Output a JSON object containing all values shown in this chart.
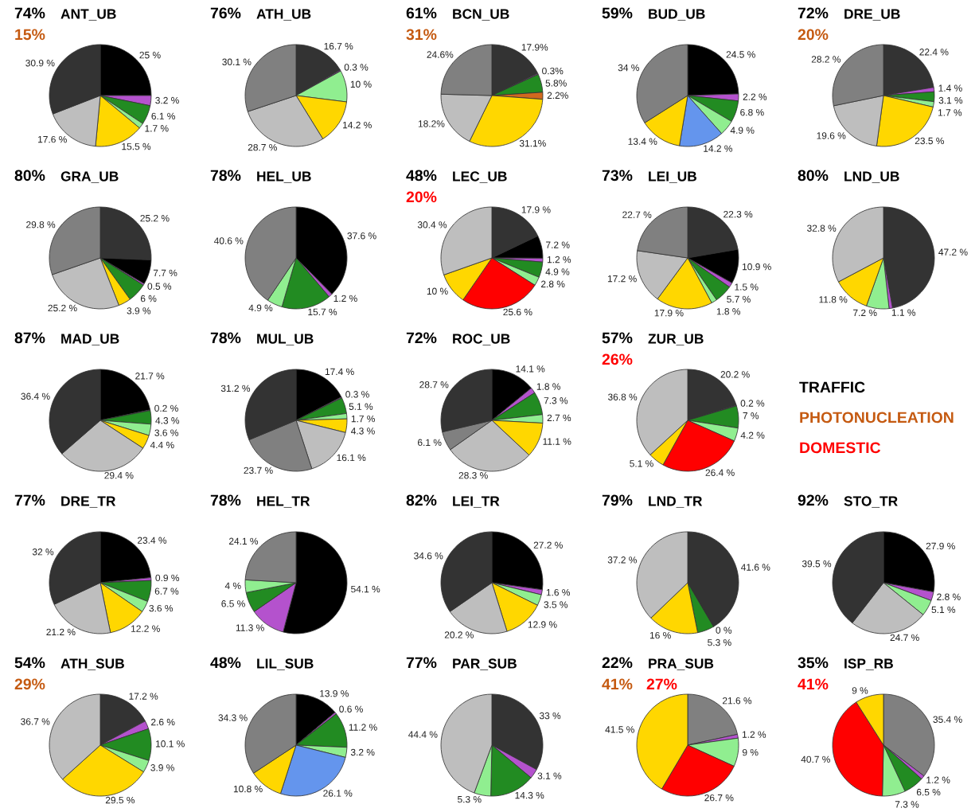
{
  "chart_data": [
    {
      "type": "pie",
      "title": "ANT_UB",
      "annotations": [
        "74%",
        "15%"
      ],
      "values": [
        25,
        3.2,
        6.1,
        1.7,
        15.5,
        17.6,
        30.9
      ],
      "value_labels": [
        "25 %",
        "3.2 %",
        "6.1 %",
        "1.7 %",
        "15.5 %",
        "17.6 %",
        "30.9 %"
      ],
      "colors": [
        "#000000",
        "#b452cd",
        "#228b22",
        "#90ee90",
        "#ffd700",
        "#bebebe",
        "#333333"
      ],
      "categories": [
        null,
        null,
        null,
        null,
        null,
        null,
        null
      ]
    },
    {
      "type": "pie",
      "title": "ATH_UB",
      "annotations": [
        "76%"
      ],
      "values": [
        16.7,
        0.3,
        10,
        14.2,
        28.7,
        30.1
      ],
      "value_labels": [
        "16.7 %",
        "0.3 %",
        "10 %",
        "14.2 %",
        "28.7 %",
        "30.1 %"
      ],
      "colors": [
        "#333333",
        "#b452cd",
        "#90ee90",
        "#ffd700",
        "#bebebe",
        "#808080"
      ],
      "categories": [
        null,
        null,
        null,
        null,
        null,
        null
      ]
    },
    {
      "type": "pie",
      "title": "BCN_UB",
      "annotations": [
        "61%",
        "31%"
      ],
      "values": [
        17.9,
        0.3,
        5.8,
        2.2,
        31.1,
        18.2,
        24.6
      ],
      "value_labels": [
        "17.9%",
        "0.3%",
        "5.8%",
        "2.2%",
        "31.1%",
        "18.2%",
        "24.6%"
      ],
      "colors": [
        "#333333",
        "#b452cd",
        "#228b22",
        "#d2691e",
        "#ffd700",
        "#bebebe",
        "#808080"
      ],
      "categories": [
        null,
        null,
        null,
        null,
        null,
        null,
        null
      ]
    },
    {
      "type": "pie",
      "title": "BUD_UB",
      "annotations": [
        "59%"
      ],
      "values": [
        24.5,
        2.2,
        6.8,
        4.9,
        14.2,
        13.4,
        34
      ],
      "value_labels": [
        "24.5 %",
        "2.2 %",
        "6.8 %",
        "4.9 %",
        "14.2 %",
        "13.4 %",
        "34 %"
      ],
      "colors": [
        "#000000",
        "#b452cd",
        "#228b22",
        "#90ee90",
        "#6495ed",
        "#ffd700",
        "#808080"
      ],
      "categories": [
        null,
        null,
        null,
        null,
        null,
        null,
        null
      ]
    },
    {
      "type": "pie",
      "title": "DRE_UB",
      "annotations": [
        "72%",
        "20%"
      ],
      "values": [
        22.4,
        1.4,
        3.1,
        1.7,
        23.5,
        19.6,
        28.2
      ],
      "value_labels": [
        "22.4 %",
        "1.4 %",
        "3.1 %",
        "1.7 %",
        "23.5 %",
        "19.6 %",
        "28.2 %"
      ],
      "colors": [
        "#333333",
        "#b452cd",
        "#228b22",
        "#90ee90",
        "#ffd700",
        "#bebebe",
        "#808080"
      ],
      "categories": [
        null,
        null,
        null,
        null,
        null,
        null,
        null
      ]
    },
    {
      "type": "pie",
      "title": "GRA_UB",
      "annotations": [
        "80%"
      ],
      "values": [
        25.2,
        7.7,
        0.5,
        6,
        3.9,
        25.2,
        29.8
      ],
      "value_labels": [
        "25.2 %",
        "7.7 %",
        "0.5 %",
        "6 %",
        "3.9 %",
        "25.2 %",
        "29.8 %"
      ],
      "colors": [
        "#333333",
        "#000000",
        "#b452cd",
        "#228b22",
        "#ffd700",
        "#bebebe",
        "#808080"
      ],
      "categories": [
        null,
        null,
        null,
        null,
        null,
        null,
        null
      ]
    },
    {
      "type": "pie",
      "title": "HEL_UB",
      "annotations": [
        "78%"
      ],
      "values": [
        37.6,
        1.2,
        15.7,
        4.9,
        40.6
      ],
      "value_labels": [
        "37.6 %",
        "1.2 %",
        "15.7 %",
        "4.9 %",
        "40.6 %"
      ],
      "colors": [
        "#000000",
        "#b452cd",
        "#228b22",
        "#90ee90",
        "#808080"
      ],
      "categories": [
        null,
        null,
        null,
        null,
        null
      ]
    },
    {
      "type": "pie",
      "title": "LEC_UB",
      "annotations": [
        "48%",
        null,
        "20%"
      ],
      "values": [
        17.9,
        7.2,
        1.2,
        4.9,
        2.8,
        25.6,
        10,
        30.4
      ],
      "value_labels": [
        "17.9 %",
        "7.2 %",
        "1.2 %",
        "4.9 %",
        "2.8 %",
        "25.6 %",
        "10 %",
        "30.4 %"
      ],
      "colors": [
        "#333333",
        "#000000",
        "#b452cd",
        "#228b22",
        "#90ee90",
        "#ff0000",
        "#ffd700",
        "#bebebe"
      ],
      "categories": [
        null,
        null,
        null,
        null,
        null,
        null,
        null,
        null
      ]
    },
    {
      "type": "pie",
      "title": "LEI_UB",
      "annotations": [
        "73%"
      ],
      "values": [
        22.3,
        10.9,
        1.5,
        5.7,
        1.8,
        17.9,
        17.2,
        22.7
      ],
      "value_labels": [
        "22.3 %",
        "10.9 %",
        "1.5 %",
        "5.7 %",
        "1.8 %",
        "17.9 %",
        "17.2 %",
        "22.7 %"
      ],
      "colors": [
        "#333333",
        "#000000",
        "#b452cd",
        "#228b22",
        "#90ee90",
        "#ffd700",
        "#bebebe",
        "#808080"
      ],
      "categories": [
        null,
        null,
        null,
        null,
        null,
        null,
        null,
        null
      ]
    },
    {
      "type": "pie",
      "title": "LND_UB",
      "annotations": [
        "80%"
      ],
      "values": [
        47.2,
        1.1,
        7.2,
        11.8,
        32.8
      ],
      "value_labels": [
        "47.2 %",
        "1.1 %",
        "7.2 %",
        "11.8 %",
        "32.8 %"
      ],
      "colors": [
        "#333333",
        "#b452cd",
        "#90ee90",
        "#ffd700",
        "#bebebe"
      ],
      "categories": [
        null,
        null,
        null,
        null,
        null
      ]
    },
    {
      "type": "pie",
      "title": "MAD_UB",
      "annotations": [
        "87%"
      ],
      "values": [
        21.7,
        0.2,
        4.3,
        3.6,
        4.4,
        29.4,
        36.4
      ],
      "value_labels": [
        "21.7 %",
        "0.2 %",
        "4.3 %",
        "3.6 %",
        "4.4 %",
        "29.4 %",
        "36.4 %"
      ],
      "colors": [
        "#000000",
        "#b452cd",
        "#228b22",
        "#90ee90",
        "#ffd700",
        "#bebebe",
        "#333333"
      ],
      "categories": [
        null,
        null,
        null,
        null,
        null,
        null,
        null
      ]
    },
    {
      "type": "pie",
      "title": "MUL_UB",
      "annotations": [
        "78%"
      ],
      "values": [
        17.4,
        0.3,
        5.1,
        1.7,
        4.3,
        16.1,
        23.7,
        31.2
      ],
      "value_labels": [
        "17.4 %",
        "0.3 %",
        "5.1 %",
        "1.7 %",
        "4.3 %",
        "16.1 %",
        "23.7 %",
        "31.2 %"
      ],
      "colors": [
        "#000000",
        "#b452cd",
        "#228b22",
        "#90ee90",
        "#ffd700",
        "#bebebe",
        "#808080",
        "#333333"
      ],
      "categories": [
        null,
        null,
        null,
        null,
        null,
        null,
        null,
        null
      ]
    },
    {
      "type": "pie",
      "title": "ROC_UB",
      "annotations": [
        "72%"
      ],
      "values": [
        14.1,
        1.8,
        7.3,
        2.7,
        11.1,
        28.3,
        6.1,
        28.7
      ],
      "value_labels": [
        "14.1 %",
        "1.8 %",
        "7.3 %",
        "2.7 %",
        "11.1 %",
        "28.3 %",
        "6.1 %",
        "28.7 %"
      ],
      "colors": [
        "#000000",
        "#b452cd",
        "#228b22",
        "#90ee90",
        "#ffd700",
        "#bebebe",
        "#808080",
        "#333333"
      ],
      "categories": [
        null,
        null,
        null,
        null,
        null,
        null,
        null,
        null
      ]
    },
    {
      "type": "pie",
      "title": "ZUR_UB",
      "annotations": [
        "57%",
        null,
        "26%"
      ],
      "values": [
        20.2,
        0.2,
        7,
        4.2,
        26.4,
        5.1,
        36.8
      ],
      "value_labels": [
        "20.2 %",
        "0.2 %",
        "7 %",
        "4.2 %",
        "26.4 %",
        "5.1 %",
        "36.8 %"
      ],
      "colors": [
        "#333333",
        "#b452cd",
        "#228b22",
        "#90ee90",
        "#ff0000",
        "#ffd700",
        "#bebebe"
      ],
      "categories": [
        null,
        null,
        null,
        null,
        null,
        null,
        null
      ]
    },
    {
      "type": "other",
      "categories": [
        "TRAFFIC",
        "PHOTONUCLEATION",
        "DOMESTIC"
      ],
      "colors": [
        "#000000",
        "#c55a11",
        "#ff0000"
      ]
    },
    {
      "type": "pie",
      "title": "DRE_TR",
      "annotations": [
        "77%"
      ],
      "values": [
        23.4,
        0.9,
        6.7,
        3.6,
        12.2,
        21.2,
        32
      ],
      "value_labels": [
        "23.4 %",
        "0.9 %",
        "6.7 %",
        "3.6 %",
        "12.2 %",
        "21.2 %",
        "32 %"
      ],
      "colors": [
        "#000000",
        "#b452cd",
        "#228b22",
        "#90ee90",
        "#ffd700",
        "#bebebe",
        "#333333"
      ],
      "categories": [
        null,
        null,
        null,
        null,
        null,
        null,
        null
      ]
    },
    {
      "type": "pie",
      "title": "HEL_TR",
      "annotations": [
        "78%"
      ],
      "values": [
        54.1,
        11.3,
        6.5,
        4,
        24.1
      ],
      "value_labels": [
        "54.1 %",
        "11.3 %",
        "6.5 %",
        "4 %",
        "24.1 %"
      ],
      "colors": [
        "#000000",
        "#b452cd",
        "#228b22",
        "#90ee90",
        "#808080"
      ],
      "categories": [
        null,
        null,
        null,
        null,
        null
      ]
    },
    {
      "type": "pie",
      "title": "LEI_TR",
      "annotations": [
        "82%"
      ],
      "values": [
        27.2,
        1.6,
        3.5,
        12.9,
        20.2,
        34.6
      ],
      "value_labels": [
        "27.2 %",
        "1.6 %",
        "3.5 %",
        "12.9 %",
        "20.2 %",
        "34.6 %"
      ],
      "colors": [
        "#000000",
        "#b452cd",
        "#90ee90",
        "#ffd700",
        "#bebebe",
        "#333333"
      ],
      "categories": [
        null,
        null,
        null,
        null,
        null,
        null
      ]
    },
    {
      "type": "pie",
      "title": "LND_TR",
      "annotations": [
        "79%"
      ],
      "values": [
        41.6,
        0,
        5.3,
        16,
        37.2
      ],
      "value_labels": [
        "41.6 %",
        "0 %",
        "5.3 %",
        "16 %",
        "37.2 %"
      ],
      "colors": [
        "#333333",
        "#b452cd",
        "#228b22",
        "#ffd700",
        "#bebebe"
      ],
      "categories": [
        null,
        null,
        null,
        null,
        null
      ]
    },
    {
      "type": "pie",
      "title": "STO_TR",
      "annotations": [
        "92%"
      ],
      "values": [
        27.9,
        2.8,
        5.1,
        24.7,
        39.5
      ],
      "value_labels": [
        "27.9 %",
        "2.8 %",
        "5.1 %",
        "24.7 %",
        "39.5 %"
      ],
      "colors": [
        "#000000",
        "#b452cd",
        "#90ee90",
        "#bebebe",
        "#333333"
      ],
      "categories": [
        null,
        null,
        null,
        null,
        null
      ]
    },
    {
      "type": "pie",
      "title": "ATH_SUB",
      "annotations": [
        "54%",
        "29%"
      ],
      "values": [
        17.2,
        2.6,
        10.1,
        3.9,
        29.5,
        36.7
      ],
      "value_labels": [
        "17.2 %",
        "2.6 %",
        "10.1 %",
        "3.9 %",
        "29.5 %",
        "36.7 %"
      ],
      "colors": [
        "#333333",
        "#b452cd",
        "#228b22",
        "#90ee90",
        "#ffd700",
        "#bebebe"
      ],
      "categories": [
        null,
        null,
        null,
        null,
        null,
        null
      ]
    },
    {
      "type": "pie",
      "title": "LIL_SUB",
      "annotations": [
        "48%"
      ],
      "values": [
        13.9,
        0.6,
        11.2,
        3.2,
        26.1,
        10.8,
        34.3
      ],
      "value_labels": [
        "13.9 %",
        "0.6 %",
        "11.2 %",
        "3.2 %",
        "26.1 %",
        "10.8 %",
        "34.3 %"
      ],
      "colors": [
        "#000000",
        "#b452cd",
        "#228b22",
        "#90ee90",
        "#6495ed",
        "#ffd700",
        "#808080"
      ],
      "categories": [
        null,
        null,
        null,
        null,
        null,
        null,
        null
      ]
    },
    {
      "type": "pie",
      "title": "PAR_SUB",
      "annotations": [
        "77%"
      ],
      "values": [
        33,
        3.1,
        14.3,
        5.3,
        44.4
      ],
      "value_labels": [
        "33 %",
        "3.1 %",
        "14.3 %",
        "5.3 %",
        "44.4 %"
      ],
      "colors": [
        "#333333",
        "#b452cd",
        "#228b22",
        "#90ee90",
        "#bebebe"
      ],
      "categories": [
        null,
        null,
        null,
        null,
        null
      ]
    },
    {
      "type": "pie",
      "title": "PRA_SUB",
      "annotations": [
        "22%",
        "41%",
        "27%"
      ],
      "values": [
        21.6,
        1.2,
        9,
        26.7,
        41.5
      ],
      "value_labels": [
        "21.6 %",
        "1.2 %",
        "9 %",
        "26.7 %",
        "41.5 %"
      ],
      "colors": [
        "#808080",
        "#b452cd",
        "#90ee90",
        "#ff0000",
        "#ffd700"
      ],
      "categories": [
        null,
        null,
        null,
        null,
        null
      ]
    },
    {
      "type": "pie",
      "title": "ISP_RB",
      "annotations": [
        "35%",
        null,
        "41%"
      ],
      "values": [
        35.4,
        1.2,
        6.5,
        7.3,
        40.7,
        9
      ],
      "value_labels": [
        "35.4 %",
        "1.2 %",
        "6.5 %",
        "7.3 %",
        "40.7 %",
        "9 %"
      ],
      "colors": [
        "#808080",
        "#b452cd",
        "#228b22",
        "#90ee90",
        "#ff0000",
        "#ffd700"
      ],
      "categories": [
        null,
        null,
        null,
        null,
        null,
        null
      ]
    }
  ]
}
